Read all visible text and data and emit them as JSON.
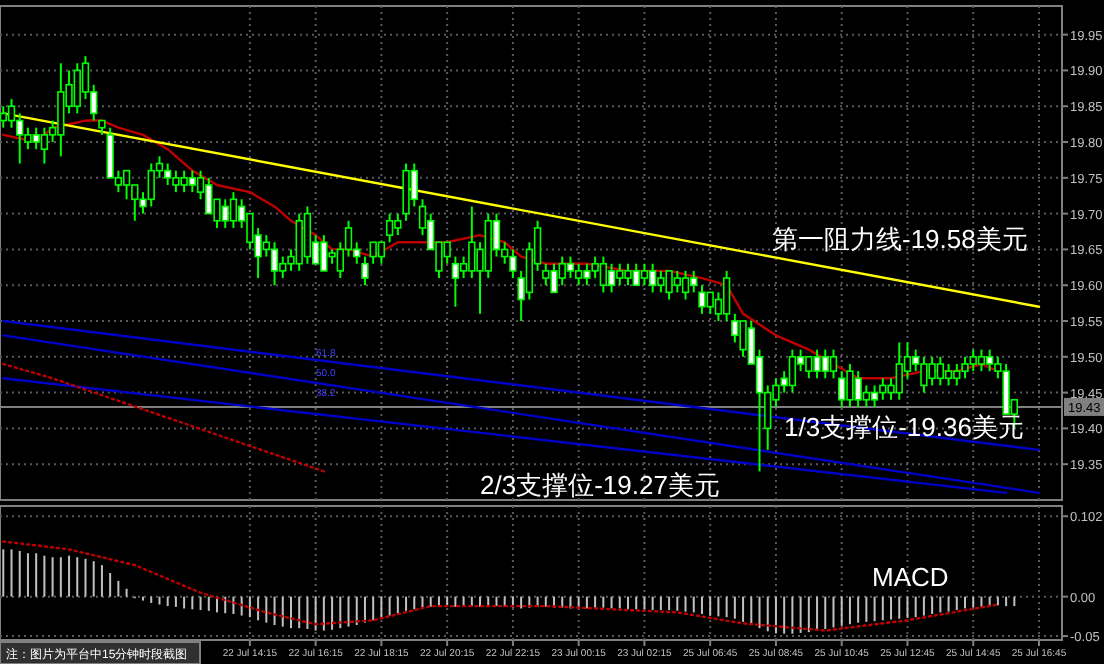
{
  "chart_data": [
    {
      "type": "candlestick",
      "color": "#00ff00",
      "grid": true,
      "tick_labels": "y",
      "categories": [
        null,
        null,
        null,
        null,
        null,
        null,
        null,
        null,
        null,
        null,
        null,
        null,
        null,
        null,
        null,
        null,
        null,
        null,
        null,
        null,
        null,
        null,
        null,
        null,
        null,
        null,
        null,
        null,
        null,
        null,
        null,
        null,
        null,
        null,
        null,
        null,
        null,
        null,
        null,
        null,
        null,
        null,
        null,
        null,
        null,
        null,
        null,
        null,
        null,
        null,
        null,
        null,
        null,
        null,
        null,
        null,
        null,
        null,
        null,
        null,
        null,
        null,
        null,
        null,
        null,
        null,
        null,
        null,
        null,
        null,
        null,
        null,
        null,
        null,
        null,
        null,
        null,
        null,
        null,
        null,
        null,
        null,
        null,
        null,
        null,
        null,
        null,
        null,
        null,
        null,
        null,
        null,
        null,
        null,
        null,
        null,
        null,
        null,
        null,
        null,
        null,
        null,
        null,
        null,
        null,
        null,
        null,
        null,
        null,
        null,
        null,
        null,
        null,
        null,
        null,
        null,
        null,
        null,
        null,
        null,
        null,
        null,
        null,
        null,
        null,
        null,
        null
      ],
      "ohlc": [
        [
          19.83,
          19.85,
          19.82,
          19.84
        ],
        [
          19.83,
          19.86,
          19.82,
          19.85
        ],
        [
          19.83,
          19.84,
          19.77,
          19.81
        ],
        [
          19.8,
          19.82,
          19.79,
          19.81
        ],
        [
          19.81,
          19.82,
          19.79,
          19.8
        ],
        [
          19.79,
          19.82,
          19.77,
          19.81
        ],
        [
          19.81,
          19.83,
          19.8,
          19.82
        ],
        [
          19.81,
          19.91,
          19.78,
          19.87
        ],
        [
          19.85,
          19.9,
          19.84,
          19.88
        ],
        [
          19.85,
          19.91,
          19.84,
          19.9
        ],
        [
          19.87,
          19.92,
          19.86,
          19.91
        ],
        [
          19.87,
          19.88,
          19.83,
          19.84
        ],
        [
          19.82,
          19.83,
          19.81,
          19.83
        ],
        [
          19.81,
          19.82,
          19.75,
          19.75
        ],
        [
          19.74,
          19.76,
          19.73,
          19.75
        ],
        [
          19.74,
          19.76,
          19.72,
          19.76
        ],
        [
          19.72,
          19.74,
          19.69,
          19.74
        ],
        [
          19.72,
          19.73,
          19.7,
          19.71
        ],
        [
          19.72,
          19.77,
          19.71,
          19.76
        ],
        [
          19.76,
          19.78,
          19.75,
          19.77
        ],
        [
          19.76,
          19.77,
          19.74,
          19.75
        ],
        [
          19.74,
          19.76,
          19.73,
          19.75
        ],
        [
          19.74,
          19.76,
          19.73,
          19.75
        ],
        [
          19.75,
          19.76,
          19.73,
          19.74
        ],
        [
          19.73,
          19.76,
          19.72,
          19.75
        ],
        [
          19.74,
          19.75,
          19.7,
          19.7
        ],
        [
          19.69,
          19.72,
          19.68,
          19.72
        ],
        [
          19.71,
          19.72,
          19.68,
          19.69
        ],
        [
          19.69,
          19.73,
          19.68,
          19.72
        ],
        [
          19.71,
          19.72,
          19.68,
          19.69
        ],
        [
          19.66,
          19.7,
          19.65,
          19.7
        ],
        [
          19.67,
          19.68,
          19.61,
          19.64
        ],
        [
          19.65,
          19.67,
          19.64,
          19.66
        ],
        [
          19.65,
          19.66,
          19.6,
          19.62
        ],
        [
          19.62,
          19.64,
          19.61,
          19.63
        ],
        [
          19.63,
          19.65,
          19.62,
          19.64
        ],
        [
          19.63,
          19.7,
          19.62,
          19.69
        ],
        [
          19.64,
          19.71,
          19.63,
          19.7
        ],
        [
          19.66,
          19.67,
          19.63,
          19.63
        ],
        [
          19.66,
          19.67,
          19.62,
          19.62
        ],
        [
          19.64,
          19.65,
          19.63,
          19.645
        ],
        [
          19.62,
          19.66,
          19.61,
          19.65
        ],
        [
          19.65,
          19.69,
          19.64,
          19.68
        ],
        [
          19.65,
          19.66,
          19.63,
          19.64
        ],
        [
          19.63,
          19.64,
          19.6,
          19.61
        ],
        [
          19.64,
          19.66,
          19.63,
          19.66
        ],
        [
          19.64,
          19.66,
          19.63,
          19.66
        ],
        [
          19.67,
          19.7,
          19.66,
          19.69
        ],
        [
          19.68,
          19.7,
          19.67,
          19.69
        ],
        [
          19.7,
          19.77,
          19.69,
          19.76
        ],
        [
          19.76,
          19.77,
          19.71,
          19.72
        ],
        [
          19.68,
          19.72,
          19.67,
          19.71
        ],
        [
          19.69,
          19.7,
          19.65,
          19.65
        ],
        [
          19.62,
          19.66,
          19.61,
          19.66
        ],
        [
          19.64,
          19.66,
          19.63,
          19.66
        ],
        [
          19.63,
          19.64,
          19.57,
          19.61
        ],
        [
          19.62,
          19.64,
          19.61,
          19.63
        ],
        [
          19.62,
          19.71,
          19.61,
          19.66
        ],
        [
          19.62,
          19.66,
          19.56,
          19.65
        ],
        [
          19.62,
          19.7,
          19.61,
          19.69
        ],
        [
          19.69,
          19.7,
          19.64,
          19.65
        ],
        [
          19.64,
          19.66,
          19.63,
          19.65
        ],
        [
          19.64,
          19.65,
          19.61,
          19.62
        ],
        [
          19.61,
          19.62,
          19.55,
          19.58
        ],
        [
          19.59,
          19.66,
          19.58,
          19.65
        ],
        [
          19.63,
          19.69,
          19.62,
          19.68
        ],
        [
          19.61,
          19.63,
          19.6,
          19.62
        ],
        [
          19.62,
          19.63,
          19.59,
          19.59
        ],
        [
          19.61,
          19.64,
          19.6,
          19.63
        ],
        [
          19.63,
          19.64,
          19.61,
          19.62
        ],
        [
          19.61,
          19.63,
          19.6,
          19.62
        ],
        [
          19.62,
          19.63,
          19.6,
          19.61
        ],
        [
          19.62,
          19.64,
          19.61,
          19.63
        ],
        [
          19.6,
          19.64,
          19.59,
          19.63
        ],
        [
          19.62,
          19.63,
          19.59,
          19.6
        ],
        [
          19.61,
          19.63,
          19.6,
          19.62
        ],
        [
          19.61,
          19.63,
          19.6,
          19.62
        ],
        [
          19.62,
          19.63,
          19.6,
          19.6
        ],
        [
          19.61,
          19.63,
          19.6,
          19.62
        ],
        [
          19.62,
          19.63,
          19.59,
          19.6
        ],
        [
          19.6,
          19.62,
          19.59,
          19.61
        ],
        [
          19.59,
          19.62,
          19.58,
          19.62
        ],
        [
          19.6,
          19.62,
          19.59,
          19.61
        ],
        [
          19.59,
          19.62,
          19.58,
          19.61
        ],
        [
          19.61,
          19.62,
          19.59,
          19.6
        ],
        [
          19.59,
          19.6,
          19.56,
          19.57
        ],
        [
          19.57,
          19.59,
          19.56,
          19.59
        ],
        [
          19.56,
          19.59,
          19.55,
          19.58
        ],
        [
          19.56,
          19.62,
          19.55,
          19.61
        ],
        [
          19.55,
          19.56,
          19.52,
          19.53
        ],
        [
          19.51,
          19.55,
          19.5,
          19.55
        ],
        [
          19.54,
          19.55,
          19.49,
          19.49
        ],
        [
          19.5,
          19.51,
          19.34,
          19.45
        ],
        [
          19.4,
          19.46,
          19.37,
          19.45
        ],
        [
          19.44,
          19.47,
          19.43,
          19.46
        ],
        [
          19.47,
          19.48,
          19.45,
          19.46
        ],
        [
          19.46,
          19.51,
          19.45,
          19.5
        ],
        [
          19.5,
          19.51,
          19.48,
          19.49
        ],
        [
          19.48,
          19.5,
          19.47,
          19.5
        ],
        [
          19.5,
          19.51,
          19.47,
          19.48
        ],
        [
          19.5,
          19.51,
          19.47,
          19.48
        ],
        [
          19.48,
          19.51,
          19.47,
          19.5
        ],
        [
          19.47,
          19.48,
          19.43,
          19.44
        ],
        [
          19.44,
          19.49,
          19.43,
          19.48
        ],
        [
          19.47,
          19.48,
          19.43,
          19.44
        ],
        [
          19.44,
          19.46,
          19.43,
          19.45
        ],
        [
          19.45,
          19.46,
          19.43,
          19.44
        ],
        [
          19.45,
          19.47,
          19.44,
          19.46
        ],
        [
          19.45,
          19.47,
          19.44,
          19.46
        ],
        [
          19.45,
          19.52,
          19.44,
          19.49
        ],
        [
          19.48,
          19.52,
          19.47,
          19.5
        ],
        [
          19.5,
          19.51,
          19.48,
          19.49
        ],
        [
          19.46,
          19.5,
          19.45,
          19.49
        ],
        [
          19.47,
          19.5,
          19.46,
          19.49
        ],
        [
          19.47,
          19.5,
          19.46,
          19.49
        ],
        [
          19.47,
          19.49,
          19.46,
          19.48
        ],
        [
          19.47,
          19.49,
          19.46,
          19.48
        ],
        [
          19.48,
          19.5,
          19.47,
          19.49
        ],
        [
          19.49,
          19.51,
          19.48,
          19.5
        ],
        [
          19.49,
          19.51,
          19.48,
          19.5
        ],
        [
          19.5,
          19.51,
          19.48,
          19.49
        ],
        [
          19.48,
          19.5,
          19.47,
          19.49
        ],
        [
          19.48,
          19.49,
          19.42,
          19.42
        ],
        [
          19.42,
          19.44,
          19.4,
          19.44
        ],
        null,
        null,
        null
      ],
      "series": [
        {
          "type": "line",
          "color": "#c00000",
          "values": [
            19.81,
            null,
            null,
            null,
            19.8,
            null,
            19.82,
            null,
            null,
            null,
            19.83,
            null,
            19.83,
            null,
            19.82,
            null,
            null,
            19.81,
            null,
            null,
            19.79,
            null,
            null,
            19.76,
            null,
            null,
            19.74,
            null,
            null,
            null,
            19.73,
            null,
            null,
            19.71,
            null,
            19.69,
            null,
            null,
            19.67,
            null,
            19.65,
            null,
            19.65,
            null,
            null,
            19.64,
            null,
            null,
            19.66,
            null,
            null,
            19.66,
            null,
            null,
            19.66,
            null,
            null,
            null,
            19.67,
            null,
            null,
            19.66,
            null,
            19.64,
            null,
            null,
            19.63,
            null,
            null,
            null,
            null,
            19.63,
            null,
            null,
            null,
            null,
            19.62,
            null,
            null,
            null,
            null,
            19.62,
            null,
            null,
            null,
            19.61,
            null,
            null,
            19.6,
            null,
            19.56,
            null,
            null,
            null,
            19.53,
            null,
            null,
            null,
            19.51,
            null,
            null,
            19.49,
            null,
            null,
            19.47,
            null,
            null,
            null,
            19.47,
            null,
            null,
            null,
            19.48,
            null,
            null,
            null,
            19.48,
            null,
            null,
            19.49,
            null,
            19.48,
            null,
            null,
            null,
            null,
            null
          ]
        },
        {
          "type": "line",
          "color": "#ffff00",
          "values": [
            19.84,
            null,
            null,
            null,
            null,
            null,
            null,
            null,
            null,
            null,
            null,
            null,
            null,
            null,
            null,
            null,
            null,
            null,
            null,
            null,
            null,
            null,
            null,
            null,
            null,
            null,
            null,
            null,
            null,
            null,
            null,
            null,
            null,
            null,
            null,
            null,
            null,
            null,
            null,
            null,
            null,
            null,
            null,
            null,
            null,
            null,
            null,
            null,
            null,
            null,
            null,
            null,
            null,
            null,
            null,
            null,
            null,
            null,
            null,
            null,
            null,
            null,
            null,
            null,
            null,
            null,
            null,
            null,
            null,
            null,
            null,
            null,
            null,
            null,
            null,
            null,
            null,
            null,
            null,
            null,
            null,
            null,
            null,
            null,
            null,
            null,
            null,
            null,
            null,
            null,
            null,
            null,
            null,
            null,
            null,
            null,
            null,
            null,
            null,
            null,
            null,
            null,
            null,
            null,
            null,
            null,
            null,
            null,
            null,
            null,
            null,
            null,
            null,
            null,
            null,
            null,
            null,
            null,
            null,
            null,
            null,
            null,
            null,
            null,
            null,
            null,
            19.57
          ]
        },
        {
          "type": "line",
          "color": "#0000c8",
          "values": [
            19.55,
            null,
            null,
            null,
            null,
            null,
            null,
            null,
            null,
            null,
            null,
            null,
            null,
            null,
            null,
            null,
            null,
            null,
            null,
            null,
            null,
            null,
            null,
            null,
            null,
            null,
            null,
            null,
            null,
            null,
            null,
            null,
            null,
            null,
            null,
            null,
            null,
            null,
            null,
            null,
            null,
            null,
            null,
            null,
            null,
            null,
            null,
            null,
            null,
            null,
            null,
            null,
            null,
            null,
            null,
            null,
            null,
            null,
            null,
            null,
            null,
            null,
            null,
            null,
            null,
            null,
            null,
            null,
            null,
            null,
            null,
            null,
            null,
            null,
            null,
            null,
            null,
            null,
            null,
            null,
            null,
            null,
            null,
            null,
            null,
            null,
            null,
            null,
            null,
            null,
            null,
            null,
            null,
            null,
            null,
            null,
            null,
            null,
            null,
            null,
            null,
            null,
            null,
            null,
            null,
            null,
            null,
            null,
            null,
            null,
            null,
            null,
            null,
            null,
            null,
            null,
            null,
            null,
            null,
            null,
            null,
            null,
            null,
            null,
            null,
            null,
            19.37
          ]
        },
        {
          "type": "line",
          "color": "#0000c8",
          "values": [
            19.53,
            null,
            null,
            null,
            null,
            null,
            null,
            null,
            null,
            null,
            null,
            null,
            null,
            null,
            null,
            null,
            null,
            null,
            null,
            null,
            null,
            null,
            null,
            null,
            null,
            null,
            null,
            null,
            null,
            null,
            null,
            null,
            null,
            null,
            null,
            null,
            null,
            null,
            null,
            null,
            null,
            null,
            null,
            null,
            null,
            null,
            null,
            null,
            null,
            null,
            null,
            null,
            null,
            null,
            null,
            null,
            null,
            null,
            null,
            null,
            null,
            null,
            null,
            null,
            null,
            null,
            null,
            null,
            null,
            null,
            null,
            null,
            null,
            null,
            null,
            null,
            null,
            null,
            null,
            null,
            null,
            null,
            null,
            null,
            null,
            null,
            null,
            null,
            null,
            null,
            null,
            null,
            null,
            null,
            null,
            null,
            null,
            null,
            null,
            null,
            null,
            null,
            null,
            null,
            null,
            null,
            null,
            null,
            null,
            null,
            null,
            null,
            null,
            null,
            null,
            null,
            null,
            null,
            null,
            null,
            null,
            null,
            null,
            null,
            null,
            null,
            19.31
          ]
        },
        {
          "type": "line",
          "color": "#0000c8",
          "values": [
            19.47,
            null,
            null,
            null,
            null,
            null,
            null,
            null,
            null,
            null,
            null,
            null,
            null,
            null,
            null,
            null,
            null,
            null,
            null,
            null,
            null,
            null,
            null,
            null,
            null,
            null,
            null,
            null,
            null,
            null,
            null,
            null,
            null,
            null,
            null,
            null,
            null,
            null,
            null,
            null,
            null,
            null,
            null,
            null,
            null,
            null,
            null,
            null,
            null,
            null,
            null,
            null,
            null,
            null,
            null,
            null,
            null,
            null,
            null,
            null,
            null,
            null,
            null,
            null,
            null,
            null,
            null,
            null,
            null,
            null,
            null,
            null,
            null,
            null,
            null,
            null,
            null,
            null,
            null,
            null,
            null,
            null,
            null,
            null,
            null,
            null,
            null,
            null,
            null,
            null,
            null,
            null,
            null,
            null,
            null,
            null,
            null,
            null,
            null,
            null,
            null,
            null,
            null,
            null,
            null,
            null,
            null,
            null,
            null,
            null,
            null,
            null,
            null,
            null,
            null,
            null,
            null,
            null,
            null,
            null,
            null,
            null,
            19.31,
            null,
            null,
            null,
            null
          ]
        },
        {
          "type": "line",
          "color": "#c00000",
          "line_style": "dotted",
          "values": [
            19.49,
            null,
            null,
            null,
            null,
            null,
            19.47,
            null,
            null,
            null,
            null,
            null,
            null,
            null,
            null,
            null,
            null,
            null,
            null,
            null,
            null,
            null,
            null,
            null,
            null,
            null,
            null,
            null,
            null,
            null,
            null,
            null,
            null,
            null,
            null,
            null,
            null,
            null,
            null,
            19.34,
            null,
            null,
            null,
            null,
            null,
            null,
            null,
            null,
            null,
            null,
            null,
            null,
            null,
            null,
            null,
            null,
            null,
            null,
            null,
            null,
            null,
            null,
            null,
            null,
            null,
            null,
            null,
            null,
            null,
            null,
            null,
            null,
            null,
            null,
            null,
            null,
            null,
            null,
            null,
            null,
            null,
            null,
            null,
            null,
            null,
            null,
            null,
            null,
            null,
            null,
            null,
            null,
            null,
            null,
            null,
            null,
            null,
            null,
            null,
            null,
            null,
            null,
            null,
            null,
            null,
            null,
            null,
            null,
            null,
            null,
            null,
            null,
            null,
            null,
            null,
            null,
            null,
            null,
            null,
            null,
            null,
            null,
            null,
            null,
            null,
            null,
            null
          ]
        }
      ],
      "ylim": [
        19.3,
        19.99
      ],
      "yticks": [
        {
          "value": 19.35,
          "label": "19.35"
        },
        {
          "value": 19.4,
          "label": "19.40"
        },
        {
          "value": 19.45,
          "label": "19.45"
        },
        {
          "value": 19.5,
          "label": "19.50"
        },
        {
          "value": 19.55,
          "label": "19.55"
        },
        {
          "value": 19.6,
          "label": "19.60"
        },
        {
          "value": 19.65,
          "label": "19.65"
        },
        {
          "value": 19.7,
          "label": "19.70"
        },
        {
          "value": 19.75,
          "label": "19.75"
        },
        {
          "value": 19.8,
          "label": "19.80"
        },
        {
          "value": 19.85,
          "label": "19.85"
        },
        {
          "value": 19.9,
          "label": "19.90"
        },
        {
          "value": 19.95,
          "label": "19.95"
        }
      ],
      "ref_lines": [
        {
          "axis": "y",
          "value": 19.43,
          "label": "19.43",
          "color": "#808080"
        }
      ],
      "annotations": [
        "第一阻力线-19.58美元",
        "1/3支撑位-19.36美元",
        "2/3支撑位-19.27美元",
        "61.8",
        "50.0",
        "38.2"
      ]
    },
    {
      "type": "bar",
      "grid": true,
      "categories": [
        null,
        null,
        null,
        null,
        null,
        null,
        null,
        null,
        null,
        null,
        null,
        null,
        null,
        null,
        null,
        null,
        null,
        null,
        null,
        null,
        null,
        null,
        null,
        null,
        null,
        null,
        null,
        null,
        null,
        null,
        "22 Jul 14:15",
        null,
        null,
        null,
        null,
        null,
        null,
        null,
        "22 Jul 16:15",
        null,
        null,
        null,
        null,
        null,
        null,
        null,
        "22 Jul 18:15",
        null,
        null,
        null,
        null,
        null,
        null,
        null,
        "22 Jul 20:15",
        null,
        null,
        null,
        null,
        null,
        null,
        null,
        "22 Jul 22:15",
        null,
        null,
        null,
        null,
        null,
        null,
        null,
        "23 Jul 00:15",
        null,
        null,
        null,
        null,
        null,
        null,
        null,
        "23 Jul 02:15",
        null,
        null,
        null,
        null,
        null,
        null,
        null,
        "25 Jul 06:45",
        null,
        null,
        null,
        null,
        null,
        null,
        null,
        "25 Jul 08:45",
        null,
        null,
        null,
        null,
        null,
        null,
        null,
        "25 Jul 10:45",
        null,
        null,
        null,
        null,
        null,
        null,
        null,
        "25 Jul 12:45",
        null,
        null,
        null,
        null,
        null,
        null,
        null,
        "25 Jul 14:45",
        null,
        null,
        null,
        null,
        null,
        null,
        null,
        "25 Jul 16:45"
      ],
      "series": [
        {
          "type": "bar",
          "color": "#c0c0c0",
          "values": [
            0.06,
            0.06,
            0.058,
            0.055,
            0.055,
            0.052,
            0.05,
            0.05,
            0.052,
            0.05,
            0.048,
            0.045,
            0.04,
            0.03,
            0.02,
            0.01,
            -0.002,
            -0.005,
            -0.008,
            -0.01,
            -0.012,
            -0.013,
            -0.015,
            -0.016,
            -0.017,
            -0.018,
            -0.02,
            -0.021,
            -0.022,
            -0.024,
            -0.026,
            -0.03,
            -0.033,
            -0.036,
            -0.038,
            -0.04,
            -0.04,
            -0.041,
            -0.043,
            -0.043,
            -0.042,
            -0.04,
            -0.038,
            -0.036,
            -0.033,
            -0.03,
            -0.027,
            -0.024,
            -0.021,
            -0.018,
            -0.016,
            -0.014,
            -0.013,
            -0.013,
            -0.012,
            -0.013,
            -0.012,
            -0.012,
            -0.013,
            -0.013,
            -0.012,
            -0.013,
            -0.014,
            -0.015,
            -0.014,
            -0.013,
            -0.013,
            -0.014,
            -0.014,
            -0.015,
            -0.015,
            -0.015,
            -0.014,
            -0.014,
            -0.015,
            -0.015,
            -0.016,
            -0.016,
            -0.016,
            -0.017,
            -0.017,
            -0.017,
            -0.018,
            -0.019,
            -0.02,
            -0.022,
            -0.024,
            -0.025,
            -0.026,
            -0.028,
            -0.032,
            -0.036,
            -0.04,
            -0.044,
            -0.046,
            -0.047,
            -0.047,
            -0.046,
            -0.045,
            -0.043,
            -0.041,
            -0.039,
            -0.037,
            -0.035,
            -0.033,
            -0.032,
            -0.031,
            -0.03,
            -0.029,
            -0.028,
            -0.027,
            -0.026,
            -0.024,
            -0.022,
            -0.02,
            -0.019,
            -0.017,
            -0.015,
            -0.014,
            -0.013,
            -0.012,
            -0.011,
            -0.012,
            -0.012,
            null,
            null,
            null
          ]
        },
        {
          "type": "line",
          "color": "#c00000",
          "line_style": "dotted",
          "values": [
            0.07,
            null,
            null,
            null,
            null,
            null,
            null,
            null,
            0.06,
            null,
            null,
            null,
            null,
            null,
            null,
            null,
            0.04,
            null,
            null,
            null,
            null,
            null,
            null,
            null,
            0.005,
            null,
            null,
            null,
            null,
            null,
            null,
            null,
            -0.02,
            null,
            null,
            null,
            null,
            null,
            -0.035,
            null,
            null,
            null,
            null,
            null,
            null,
            -0.03,
            null,
            null,
            null,
            null,
            null,
            null,
            -0.012,
            null,
            null,
            null,
            null,
            null,
            null,
            null,
            null,
            null,
            null,
            null,
            null,
            null,
            -0.012,
            null,
            null,
            null,
            null,
            null,
            null,
            null,
            null,
            null,
            null,
            null,
            null,
            null,
            null,
            null,
            -0.02,
            null,
            null,
            null,
            null,
            null,
            null,
            null,
            -0.034,
            null,
            null,
            null,
            null,
            null,
            null,
            null,
            null,
            null,
            -0.043,
            null,
            null,
            null,
            null,
            null,
            null,
            null,
            null,
            null,
            -0.03,
            null,
            null,
            null,
            null,
            null,
            null,
            null,
            null,
            null,
            null,
            -0.01,
            null,
            null,
            null,
            null,
            null
          ]
        }
      ],
      "ylim": [
        -0.055,
        0.115
      ],
      "yticks": [
        {
          "value": 0.102,
          "label": "0.102"
        },
        {
          "value": 0,
          "label": "0.00"
        },
        {
          "value": -0.05,
          "label": "-0.05"
        }
      ],
      "annotations": [
        "MACD",
        "注：图片为平台中15分钟时段截图"
      ]
    }
  ]
}
